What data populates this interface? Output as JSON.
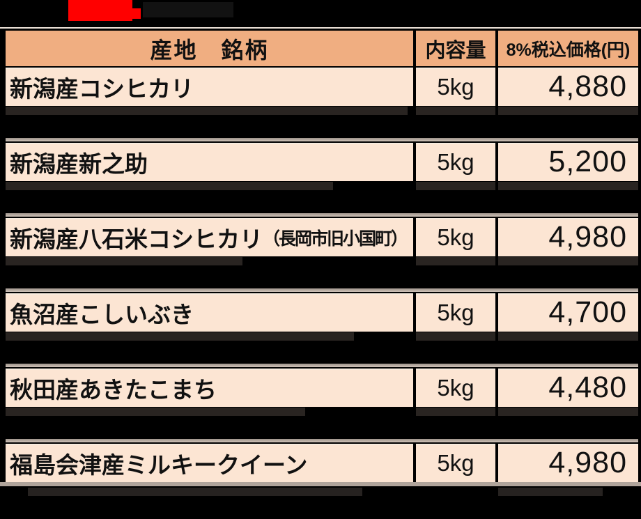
{
  "logo": {
    "description": "red-logo-mark",
    "color": "#ff0000"
  },
  "table": {
    "headers": {
      "product": "産地　銘柄",
      "amount": "内容量",
      "price": "8%税込価格(円)"
    },
    "rows": [
      {
        "name": "新潟産コシヒカリ",
        "note": "",
        "amount": "5kg",
        "price": "4,880"
      },
      {
        "name": "新潟産新之助",
        "note": "",
        "amount": "5kg",
        "price": "5,200"
      },
      {
        "name": "新潟産八石米コシヒカリ",
        "note": "（長岡市旧小国町）",
        "amount": "5kg",
        "price": "4,980"
      },
      {
        "name": "魚沼産こしいぶき",
        "note": "",
        "amount": "5kg",
        "price": "4,700"
      },
      {
        "name": "秋田産あきたこまち",
        "note": "",
        "amount": "5kg",
        "price": "4,480"
      },
      {
        "name": "福島会津産ミルキークイーン",
        "note": "",
        "amount": "5kg",
        "price": "4,980"
      }
    ]
  },
  "colors": {
    "header_bg": "#f0ae81",
    "row_bg": "#fce5d3",
    "accent_red": "#ff0000",
    "ink": "#111111"
  }
}
